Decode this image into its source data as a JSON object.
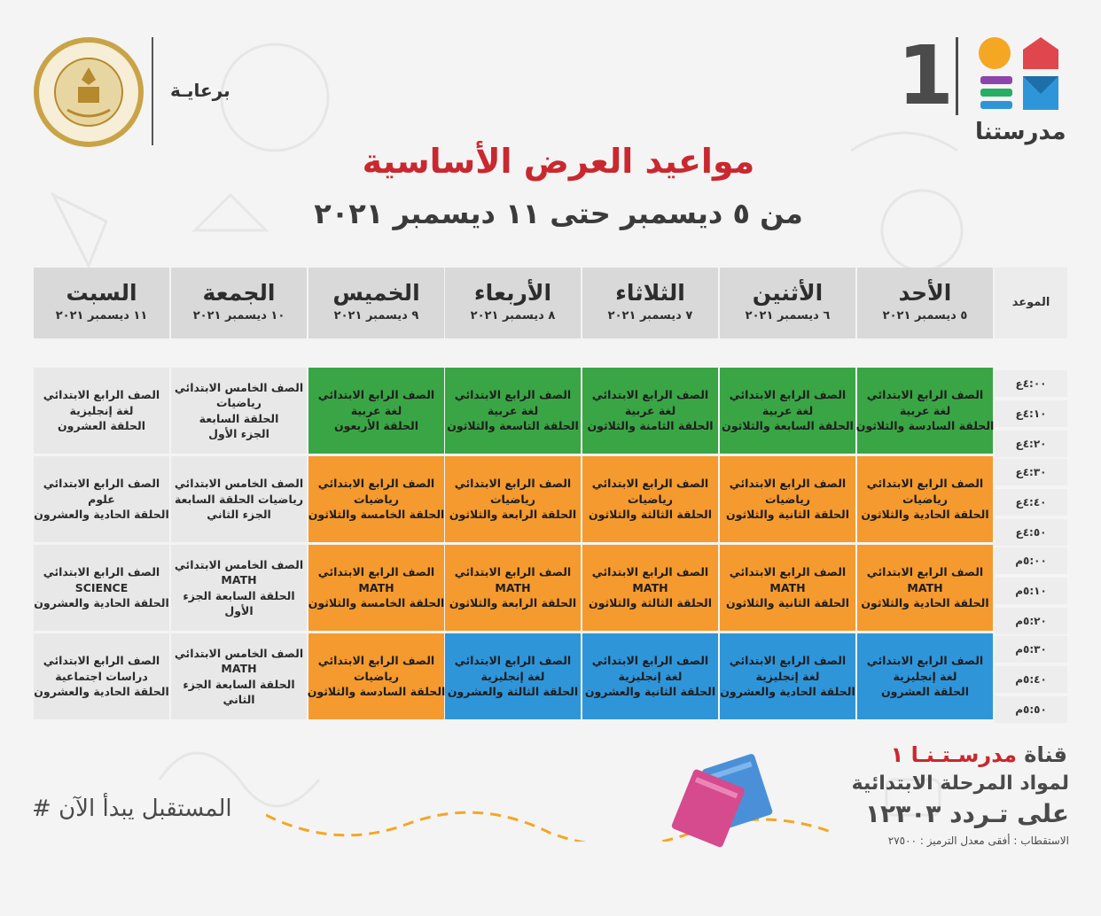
{
  "header": {
    "sponsor_label": "برعايـة",
    "brand_number": "1",
    "brand_name": "مدرستنا",
    "seal_text": "MINISTRY OF EDUCATION AND TECHNICAL EDUCATION",
    "title": "مواعيد العرض الأساسية",
    "subtitle": "من ٥ ديسمبر حتى ١١ ديسمبر ٢٠٢١"
  },
  "table": {
    "time_header": "الموعد",
    "days": [
      {
        "name": "الأحد",
        "date": "٥ ديسمبر ٢٠٢١"
      },
      {
        "name": "الأثنين",
        "date": "٦ ديسمبر ٢٠٢١"
      },
      {
        "name": "الثلاثاء",
        "date": "٧ ديسمبر ٢٠٢١"
      },
      {
        "name": "الأربعاء",
        "date": "٨ ديسمبر ٢٠٢١"
      },
      {
        "name": "الخميس",
        "date": "٩ ديسمبر ٢٠٢١"
      },
      {
        "name": "الجمعة",
        "date": "١٠ ديسمبر ٢٠٢١"
      },
      {
        "name": "السبت",
        "date": "١١ ديسمبر ٢٠٢١"
      }
    ],
    "times": [
      "٤:٠٠ع",
      "٤:١٠ع",
      "٤:٢٠ع",
      "٤:٣٠ع",
      "٤:٤٠ع",
      "٤:٥٠ع",
      "٥:٠٠م",
      "٥:١٠م",
      "٥:٢٠م",
      "٥:٣٠م",
      "٥:٤٠م",
      "٥:٥٠م"
    ],
    "rows": [
      [
        {
          "color": "green",
          "lines": [
            "الصف الرابع الابتدائي",
            "لغة عربية",
            "الحلقة السادسة والثلاثون"
          ]
        },
        {
          "color": "green",
          "lines": [
            "الصف الرابع الابتدائي",
            "لغة عربية",
            "الحلقة السابعة والثلاثون"
          ]
        },
        {
          "color": "green",
          "lines": [
            "الصف الرابع الابتدائي",
            "لغة عربية",
            "الحلقة الثامنة والثلاثون"
          ]
        },
        {
          "color": "green",
          "lines": [
            "الصف الرابع الابتدائي",
            "لغة عربية",
            "الحلقة التاسعة والثلاثون"
          ]
        },
        {
          "color": "green",
          "lines": [
            "الصف الرابع الابتدائي",
            "لغة عربية",
            "الحلقة الأربعون"
          ]
        },
        {
          "color": "gray",
          "lines": [
            "الصف الخامس الابتدائي",
            "رياضيات",
            "الحلقة السابعة",
            "الجزء الأول"
          ]
        },
        {
          "color": "gray",
          "lines": [
            "الصف الرابع الابتدائي",
            "لغة إنجليزية",
            "الحلقة العشرون"
          ]
        }
      ],
      [
        {
          "color": "orange",
          "lines": [
            "الصف الرابع الابتدائي",
            "رياضيات",
            "الحلقة الحادية والثلاثون"
          ]
        },
        {
          "color": "orange",
          "lines": [
            "الصف الرابع الابتدائي",
            "رياضيات",
            "الحلقة الثانية والثلاثون"
          ]
        },
        {
          "color": "orange",
          "lines": [
            "الصف الرابع الابتدائي",
            "رياضيات",
            "الحلقة الثالثة والثلاثون"
          ]
        },
        {
          "color": "orange",
          "lines": [
            "الصف الرابع الابتدائي",
            "رياضيات",
            "الحلقة الرابعة والثلاثون"
          ]
        },
        {
          "color": "orange",
          "lines": [
            "الصف الرابع الابتدائي",
            "رياضيات",
            "الحلقة الخامسة والثلاثون"
          ]
        },
        {
          "color": "gray",
          "lines": [
            "الصف الخامس الابتدائي",
            "رياضيات الحلقة السابعة",
            "الجزء الثاني"
          ]
        },
        {
          "color": "gray",
          "lines": [
            "الصف الرابع الابتدائي",
            "علوم",
            "الحلقة الحادية والعشرون"
          ]
        }
      ],
      [
        {
          "color": "orange",
          "lines": [
            "الصف الرابع الابتدائي",
            "MATH",
            "الحلقة الحادية والثلاثون"
          ]
        },
        {
          "color": "orange",
          "lines": [
            "الصف الرابع الابتدائي",
            "MATH",
            "الحلقة الثانية والثلاثون"
          ]
        },
        {
          "color": "orange",
          "lines": [
            "الصف الرابع الابتدائي",
            "MATH",
            "الحلقة الثالثة والثلاثون"
          ]
        },
        {
          "color": "orange",
          "lines": [
            "الصف الرابع الابتدائي",
            "MATH",
            "الحلقة الرابعة والثلاثون"
          ]
        },
        {
          "color": "orange",
          "lines": [
            "الصف الرابع الابتدائي",
            "MATH",
            "الحلقة الخامسة والثلاثون"
          ]
        },
        {
          "color": "gray",
          "lines": [
            "الصف الخامس الابتدائي",
            "MATH",
            "الحلقة السابعة الجزء",
            "الأول"
          ]
        },
        {
          "color": "gray",
          "lines": [
            "الصف الرابع الابتدائي",
            "SCIENCE",
            "الحلقة الحادية والعشرون"
          ]
        }
      ],
      [
        {
          "color": "blue",
          "lines": [
            "الصف الرابع الابتدائي",
            "لغة إنجليزية",
            "الحلقة العشرون"
          ]
        },
        {
          "color": "blue",
          "lines": [
            "الصف الرابع الابتدائي",
            "لغة إنجليزية",
            "الحلقة الحادية والعشرون"
          ]
        },
        {
          "color": "blue",
          "lines": [
            "الصف الرابع الابتدائي",
            "لغة إنجليزية",
            "الحلقة الثانية والعشرون"
          ]
        },
        {
          "color": "blue",
          "lines": [
            "الصف الرابع الابتدائي",
            "لغة إنجليزية",
            "الحلقة الثالثة والعشرون"
          ]
        },
        {
          "color": "orange",
          "lines": [
            "الصف الرابع الابتدائي",
            "رياضيات",
            "الحلقة السادسة والثلاثون"
          ]
        },
        {
          "color": "gray",
          "lines": [
            "الصف الخامس الابتدائي",
            "MATH",
            "الحلقة السابعة الجزء",
            "الثاني"
          ]
        },
        {
          "color": "gray",
          "lines": [
            "الصف الرابع الابتدائي",
            "دراسات اجتماعية",
            "الحلقة الحادية والعشرون"
          ]
        }
      ]
    ]
  },
  "footer": {
    "hashtag": "# المستقبل يبدأ الآن",
    "channel_prefix": "قناة",
    "channel_name": "مدرسـتـنـا ١",
    "channel_line2": "لمواد المرحلة الابتدائية",
    "channel_line3": "على تـردد ١٢٣٠٣",
    "channel_line4": "الاستقطاب : أفقى معدل الترميز : ٢٧٥٠٠"
  },
  "colors": {
    "green": "#3aa545",
    "orange": "#f59a2e",
    "blue": "#2f95d9",
    "gray": "#e8e8e8",
    "title_red": "#c9282e"
  }
}
